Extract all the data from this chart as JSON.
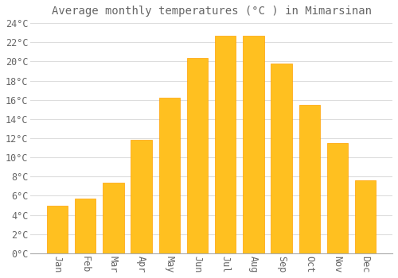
{
  "title": "Average monthly temperatures (°C ) in Mimarsinan",
  "months": [
    "Jan",
    "Feb",
    "Mar",
    "Apr",
    "May",
    "Jun",
    "Jul",
    "Aug",
    "Sep",
    "Oct",
    "Nov",
    "Dec"
  ],
  "temperatures": [
    5.0,
    5.7,
    7.4,
    11.8,
    16.2,
    20.4,
    22.7,
    22.7,
    19.8,
    15.5,
    11.5,
    7.6
  ],
  "bar_color": "#FFC020",
  "bar_edge_color": "#FFA000",
  "background_color": "#FFFFFF",
  "grid_color": "#DDDDDD",
  "text_color": "#666666",
  "ylim": [
    0,
    24
  ],
  "ytick_step": 2,
  "title_fontsize": 10,
  "tick_fontsize": 8.5,
  "font_family": "monospace"
}
